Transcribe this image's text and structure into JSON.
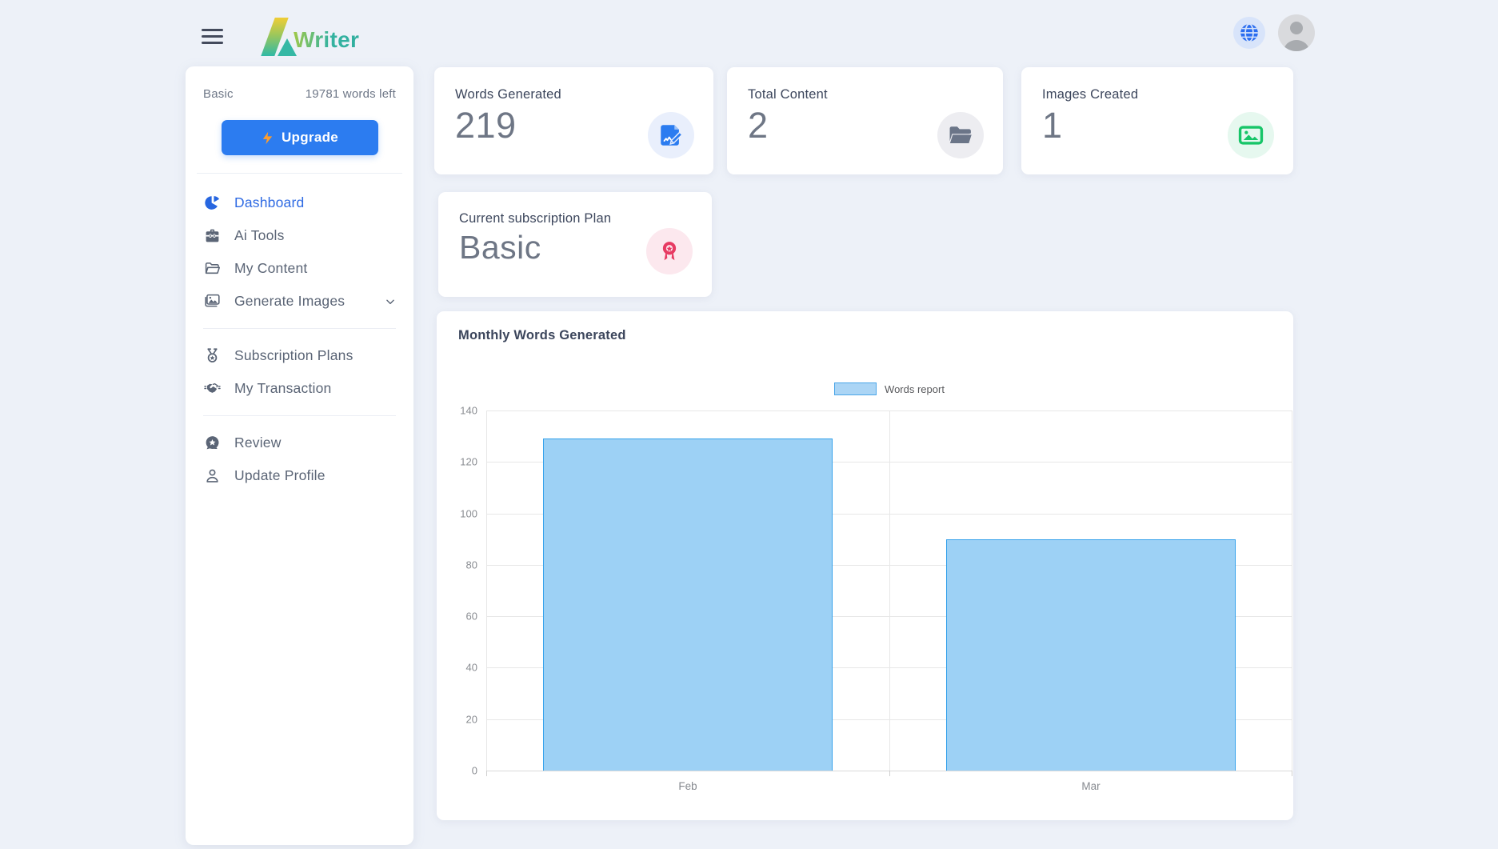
{
  "header": {
    "brand": "Writer"
  },
  "topbar": {
    "language_button": "globe",
    "profile_button": "avatar"
  },
  "sidebar": {
    "plan_label": "Basic",
    "words_left": "19781 words left",
    "upgrade_label": "Upgrade",
    "items": [
      {
        "label": "Dashboard",
        "icon": "pie-chart-icon",
        "active": true
      },
      {
        "label": "Ai Tools",
        "icon": "toolbox-icon"
      },
      {
        "label": "My Content",
        "icon": "folder-icon"
      },
      {
        "label": "Generate Images",
        "icon": "image-icon",
        "chevron": "chevron-down-icon"
      },
      {
        "label": "Subscription Plans",
        "icon": "medal-icon"
      },
      {
        "label": "My Transaction",
        "icon": "handshake-icon"
      },
      {
        "label": "Review",
        "icon": "review-star-icon"
      },
      {
        "label": "Update Profile",
        "icon": "user-icon"
      }
    ]
  },
  "stats": [
    {
      "label": "Words Generated",
      "value": "219",
      "icon": "document-edit-icon",
      "accent": "#2b7cf0"
    },
    {
      "label": "Total Content",
      "value": "2",
      "icon": "folder-open-icon",
      "accent": "#6b7588"
    },
    {
      "label": "Images Created",
      "value": "1",
      "icon": "image-frame-icon",
      "accent": "#17c568"
    }
  ],
  "subscription": {
    "label": "Current subscription Plan",
    "value": "Basic",
    "icon": "award-ribbon-icon",
    "accent": "#e73b63"
  },
  "chart_data": {
    "type": "bar",
    "title": "Monthly Words Generated",
    "categories": [
      "Feb",
      "Mar"
    ],
    "series": [
      {
        "name": "Words report",
        "values": [
          129,
          90
        ]
      }
    ],
    "xlabel": "",
    "ylabel": "",
    "ylim": [
      0,
      140
    ],
    "ytick_step": 20,
    "grid": true,
    "legend_position": "top",
    "bar_fill": "#9dd1f5",
    "bar_border": "#36a2eb",
    "bar_width_fraction": 0.72
  }
}
